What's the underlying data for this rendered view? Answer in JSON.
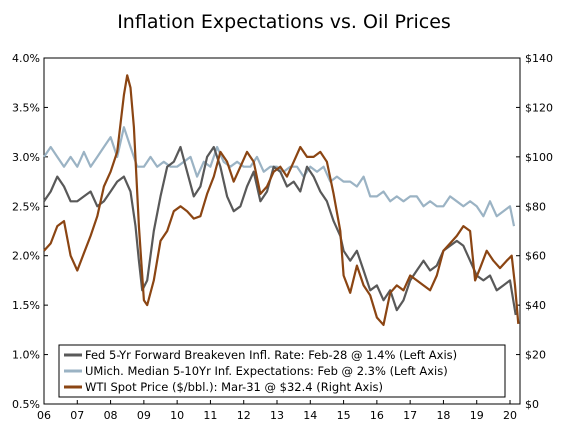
{
  "chart_data": {
    "type": "line",
    "title": "Inflation Expectations vs. Oil Prices",
    "xlim": [
      2006,
      2020.3
    ],
    "ylim_left": [
      0.5,
      4.0
    ],
    "ylim_right": [
      0,
      140
    ],
    "x_ticks": [
      "06",
      "07",
      "08",
      "09",
      "10",
      "11",
      "12",
      "13",
      "14",
      "15",
      "16",
      "17",
      "18",
      "19",
      "20"
    ],
    "y_left_ticks": [
      "0.5%",
      "1.0%",
      "1.5%",
      "2.0%",
      "2.5%",
      "3.0%",
      "3.5%",
      "4.0%"
    ],
    "y_right_ticks": [
      "$0",
      "$20",
      "$40",
      "$60",
      "$80",
      "$100",
      "$120",
      "$140"
    ],
    "grid": false,
    "legend_position": "bottom-left",
    "series": [
      {
        "name": "Fed 5-Yr Forward Breakeven Infl. Rate: Feb-28 @ 1.4% (Left Axis)",
        "axis": "left",
        "color": "#595959",
        "x": [
          2006.0,
          2006.2,
          2006.4,
          2006.6,
          2006.8,
          2007.0,
          2007.2,
          2007.4,
          2007.6,
          2007.8,
          2008.0,
          2008.2,
          2008.4,
          2008.6,
          2008.75,
          2008.85,
          2008.95,
          2009.1,
          2009.3,
          2009.5,
          2009.7,
          2009.9,
          2010.1,
          2010.3,
          2010.5,
          2010.7,
          2010.9,
          2011.1,
          2011.3,
          2011.5,
          2011.7,
          2011.9,
          2012.1,
          2012.3,
          2012.5,
          2012.7,
          2012.9,
          2013.1,
          2013.3,
          2013.5,
          2013.7,
          2013.9,
          2014.1,
          2014.3,
          2014.5,
          2014.7,
          2014.9,
          2015.0,
          2015.2,
          2015.4,
          2015.6,
          2015.8,
          2016.0,
          2016.2,
          2016.4,
          2016.6,
          2016.8,
          2017.0,
          2017.2,
          2017.4,
          2017.6,
          2017.8,
          2018.0,
          2018.2,
          2018.4,
          2018.6,
          2018.8,
          2019.0,
          2019.2,
          2019.4,
          2019.6,
          2019.8,
          2020.0,
          2020.17
        ],
        "y": [
          2.55,
          2.65,
          2.8,
          2.7,
          2.55,
          2.55,
          2.6,
          2.65,
          2.5,
          2.55,
          2.65,
          2.75,
          2.8,
          2.65,
          2.3,
          1.95,
          1.65,
          1.75,
          2.25,
          2.6,
          2.9,
          2.95,
          3.1,
          2.85,
          2.6,
          2.7,
          3.0,
          3.1,
          2.9,
          2.6,
          2.45,
          2.5,
          2.7,
          2.85,
          2.55,
          2.65,
          2.9,
          2.85,
          2.7,
          2.75,
          2.65,
          2.9,
          2.8,
          2.65,
          2.55,
          2.35,
          2.2,
          2.05,
          1.95,
          2.05,
          1.85,
          1.65,
          1.7,
          1.55,
          1.65,
          1.45,
          1.55,
          1.75,
          1.85,
          1.95,
          1.85,
          1.9,
          2.05,
          2.1,
          2.15,
          2.1,
          1.95,
          1.8,
          1.75,
          1.8,
          1.65,
          1.7,
          1.75,
          1.4
        ]
      },
      {
        "name": "UMich. Median 5-10Yr Inf. Expectations: Feb @ 2.3% (Left Axis)",
        "axis": "left",
        "color": "#9bb3c4",
        "x": [
          2006.0,
          2006.2,
          2006.4,
          2006.6,
          2006.8,
          2007.0,
          2007.2,
          2007.4,
          2007.6,
          2007.8,
          2008.0,
          2008.2,
          2008.4,
          2008.6,
          2008.8,
          2009.0,
          2009.2,
          2009.4,
          2009.6,
          2009.8,
          2010.0,
          2010.2,
          2010.4,
          2010.6,
          2010.8,
          2011.0,
          2011.2,
          2011.4,
          2011.6,
          2011.8,
          2012.0,
          2012.2,
          2012.4,
          2012.6,
          2012.8,
          2013.0,
          2013.2,
          2013.4,
          2013.6,
          2013.8,
          2014.0,
          2014.2,
          2014.4,
          2014.6,
          2014.8,
          2015.0,
          2015.2,
          2015.4,
          2015.6,
          2015.8,
          2016.0,
          2016.2,
          2016.4,
          2016.6,
          2016.8,
          2017.0,
          2017.2,
          2017.4,
          2017.6,
          2017.8,
          2018.0,
          2018.2,
          2018.4,
          2018.6,
          2018.8,
          2019.0,
          2019.2,
          2019.4,
          2019.6,
          2019.8,
          2020.0,
          2020.12
        ],
        "y": [
          3.0,
          3.1,
          3.0,
          2.9,
          3.0,
          2.9,
          3.05,
          2.9,
          3.0,
          3.1,
          3.2,
          3.0,
          3.3,
          3.1,
          2.9,
          2.9,
          3.0,
          2.9,
          2.95,
          2.9,
          2.9,
          2.95,
          3.0,
          2.8,
          2.95,
          2.9,
          3.1,
          2.95,
          2.9,
          2.95,
          2.9,
          2.9,
          3.0,
          2.85,
          2.9,
          2.9,
          2.85,
          2.9,
          2.9,
          2.8,
          2.9,
          2.85,
          2.9,
          2.75,
          2.8,
          2.75,
          2.75,
          2.7,
          2.8,
          2.6,
          2.6,
          2.65,
          2.55,
          2.6,
          2.55,
          2.6,
          2.6,
          2.5,
          2.55,
          2.5,
          2.5,
          2.6,
          2.55,
          2.5,
          2.55,
          2.5,
          2.4,
          2.55,
          2.4,
          2.45,
          2.5,
          2.3
        ]
      },
      {
        "name": "WTI Spot Price ($/bbl.): Mar-31 @ $32.4 (Right Axis)",
        "axis": "right",
        "color": "#8b4513",
        "x": [
          2006.0,
          2006.2,
          2006.4,
          2006.6,
          2006.8,
          2007.0,
          2007.2,
          2007.4,
          2007.6,
          2007.8,
          2008.0,
          2008.2,
          2008.4,
          2008.5,
          2008.6,
          2008.7,
          2008.85,
          2009.0,
          2009.1,
          2009.3,
          2009.5,
          2009.7,
          2009.9,
          2010.1,
          2010.3,
          2010.5,
          2010.7,
          2010.9,
          2011.1,
          2011.3,
          2011.5,
          2011.7,
          2011.9,
          2012.1,
          2012.3,
          2012.5,
          2012.7,
          2012.9,
          2013.1,
          2013.3,
          2013.5,
          2013.7,
          2013.9,
          2014.1,
          2014.3,
          2014.5,
          2014.7,
          2014.9,
          2015.0,
          2015.2,
          2015.4,
          2015.6,
          2015.8,
          2016.0,
          2016.2,
          2016.4,
          2016.6,
          2016.8,
          2017.0,
          2017.2,
          2017.4,
          2017.6,
          2017.8,
          2018.0,
          2018.2,
          2018.4,
          2018.6,
          2018.8,
          2018.95,
          2019.1,
          2019.3,
          2019.5,
          2019.7,
          2019.9,
          2020.05,
          2020.15,
          2020.25
        ],
        "y": [
          62,
          65,
          72,
          74,
          60,
          54,
          61,
          68,
          76,
          88,
          94,
          102,
          125,
          133,
          128,
          112,
          72,
          42,
          40,
          50,
          66,
          70,
          78,
          80,
          78,
          75,
          76,
          85,
          92,
          102,
          98,
          90,
          96,
          102,
          98,
          85,
          88,
          94,
          96,
          92,
          98,
          104,
          100,
          100,
          102,
          98,
          85,
          70,
          52,
          45,
          56,
          48,
          44,
          35,
          32,
          45,
          48,
          46,
          52,
          50,
          48,
          46,
          52,
          62,
          65,
          68,
          72,
          70,
          50,
          55,
          62,
          58,
          55,
          58,
          60,
          48,
          32.4
        ]
      }
    ],
    "legend": [
      "Fed 5-Yr Forward Breakeven Infl. Rate: Feb-28 @ 1.4% (Left Axis)",
      "UMich. Median 5-10Yr Inf. Expectations: Feb @ 2.3% (Left Axis)",
      "WTI Spot Price ($/bbl.): Mar-31 @ $32.4 (Right Axis)"
    ],
    "colors": {
      "fed": "#595959",
      "umich": "#9bb3c4",
      "wti": "#8b4513"
    }
  }
}
